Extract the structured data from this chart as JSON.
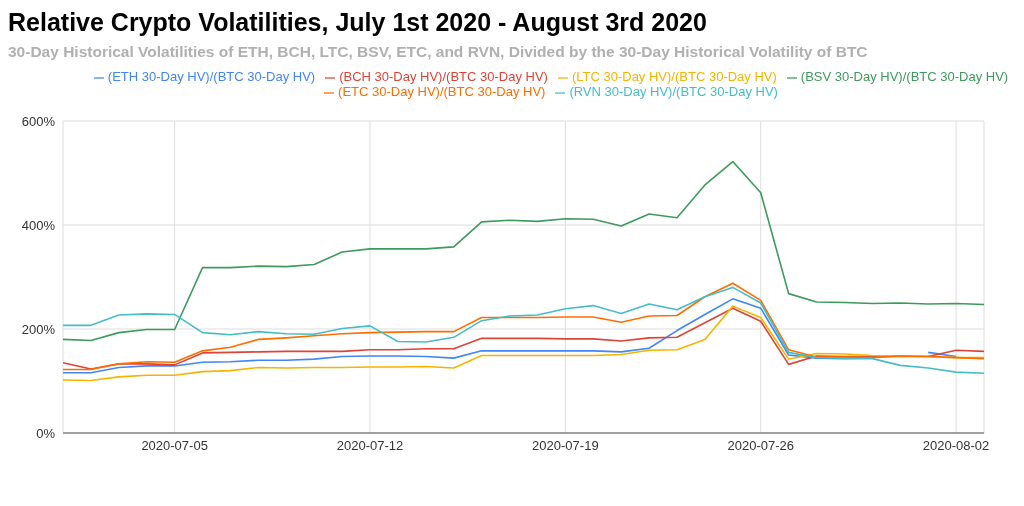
{
  "chart_data": {
    "type": "line",
    "title": "Relative Crypto Volatilities, July 1st 2020 - August 3rd 2020",
    "subtitle": "30-Day Historical Volatilities of ETH, BCH, LTC, BSV, ETC, and RVN, Divided by the 30-Day Historical Volatility of BTC",
    "x": [
      "2020-07-01",
      "2020-07-02",
      "2020-07-03",
      "2020-07-04",
      "2020-07-05",
      "2020-07-06",
      "2020-07-07",
      "2020-07-08",
      "2020-07-09",
      "2020-07-10",
      "2020-07-11",
      "2020-07-12",
      "2020-07-13",
      "2020-07-14",
      "2020-07-15",
      "2020-07-16",
      "2020-07-17",
      "2020-07-18",
      "2020-07-19",
      "2020-07-20",
      "2020-07-21",
      "2020-07-22",
      "2020-07-23",
      "2020-07-24",
      "2020-07-25",
      "2020-07-26",
      "2020-07-27",
      "2020-07-28",
      "2020-07-29",
      "2020-07-30",
      "2020-07-31",
      "2020-08-01",
      "2020-08-02",
      "2020-08-03"
    ],
    "series": [
      {
        "name": "(ETH 30-Day HV)/(BTC 30-Day HV)",
        "color": "#4285f4",
        "values": [
          116,
          116,
          126,
          129,
          129,
          136,
          137,
          140,
          140,
          142,
          147,
          148,
          148,
          147,
          144,
          158,
          158,
          158,
          158,
          158,
          156,
          163,
          197,
          228,
          258,
          240,
          150,
          144,
          143,
          144,
          null,
          155,
          147,
          null
        ]
      },
      {
        "name": "(BCH 30-Day HV)/(BTC 30-Day HV)",
        "color": "#db4437",
        "values": [
          135,
          123,
          133,
          133,
          131,
          154,
          155,
          156,
          157,
          157,
          157,
          160,
          160,
          162,
          162,
          182,
          182,
          182,
          181,
          181,
          177,
          183,
          184,
          212,
          240,
          215,
          132,
          148,
          147,
          147,
          147,
          147,
          159,
          157
        ]
      },
      {
        "name": "(LTC 30-Day HV)/(BTC 30-Day HV)",
        "color": "#f4b400",
        "values": [
          102,
          101,
          108,
          111,
          111,
          118,
          120,
          126,
          125,
          126,
          126,
          127,
          127,
          128,
          125,
          149,
          149,
          149,
          149,
          149,
          151,
          159,
          160,
          180,
          244,
          222,
          142,
          153,
          152,
          149,
          148,
          147,
          145,
          145
        ]
      },
      {
        "name": "(BSV 30-Day HV)/(BTC 30-Day HV)",
        "color": "#3d9a5c",
        "values": [
          180,
          178,
          193,
          199,
          199,
          318,
          318,
          321,
          320,
          324,
          348,
          354,
          354,
          354,
          358,
          406,
          409,
          407,
          412,
          411,
          398,
          421,
          414,
          477,
          522,
          462,
          268,
          252,
          251,
          249,
          250,
          248,
          249,
          247
        ]
      },
      {
        "name": "(ETC 30-Day HV)/(BTC 30-Day HV)",
        "color": "#ff6d01",
        "values": [
          122,
          122,
          133,
          137,
          136,
          158,
          165,
          180,
          183,
          187,
          191,
          193,
          194,
          195,
          195,
          222,
          222,
          222,
          223,
          223,
          213,
          225,
          226,
          262,
          288,
          255,
          160,
          146,
          146,
          145,
          148,
          147,
          145,
          143
        ]
      },
      {
        "name": "(RVN 30-Day HV)/(BTC 30-Day HV)",
        "color": "#46bdc6",
        "values": [
          207,
          207,
          227,
          229,
          228,
          193,
          189,
          195,
          191,
          190,
          201,
          206,
          176,
          175,
          184,
          216,
          225,
          227,
          239,
          245,
          230,
          248,
          237,
          262,
          280,
          250,
          155,
          145,
          144,
          143,
          130,
          125,
          117,
          115
        ]
      }
    ],
    "xlim": [
      "2020-07-01",
      "2020-08-03"
    ],
    "xticks": [
      "2020-07-05",
      "2020-07-12",
      "2020-07-19",
      "2020-07-26",
      "2020-08-02"
    ],
    "ylim": [
      0,
      600
    ],
    "yticks": [
      {
        "value": 0,
        "label": "0%"
      },
      {
        "value": 200,
        "label": "200%"
      },
      {
        "value": 400,
        "label": "400%"
      },
      {
        "value": 600,
        "label": "600%"
      }
    ],
    "grid": true,
    "legend": "top",
    "marker": "none",
    "line_style": "solid"
  }
}
